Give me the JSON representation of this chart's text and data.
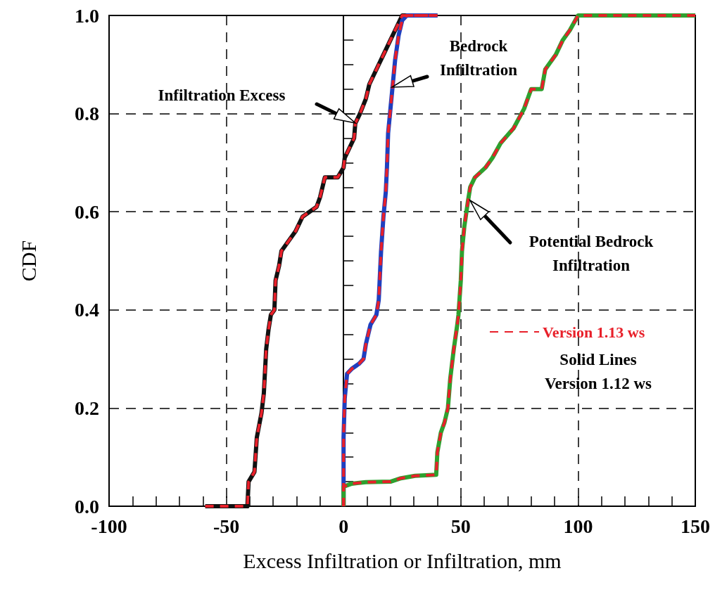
{
  "chart_data": {
    "type": "line",
    "xlabel": "Excess Infiltration or Infiltration, mm",
    "ylabel": "CDF",
    "xlim": [
      -100,
      150
    ],
    "xticks": [
      -100,
      -50,
      0,
      50,
      100,
      150
    ],
    "ylim": [
      0,
      1
    ],
    "yticks": [
      {
        "value": 0,
        "label": "0.0"
      },
      {
        "value": 0.2,
        "label": "0.2"
      },
      {
        "value": 0.4,
        "label": "0.4"
      },
      {
        "value": 0.6,
        "label": "0.6"
      },
      {
        "value": 0.8,
        "label": "0.8"
      },
      {
        "value": 1,
        "label": "1.0"
      }
    ],
    "grid": true,
    "legend": "right",
    "marker": "none",
    "series": [
      {
        "color": "#111111",
        "line_style": "solid",
        "x": [
          -59,
          -41,
          -40.5,
          -38,
          -37,
          -35,
          -34,
          -33,
          -32,
          -31,
          -29.5,
          -29,
          -27.5,
          -26.5,
          -25,
          -23.5,
          -20.5,
          -17.5,
          -14.5,
          -11.5,
          -10,
          -8,
          -2.5,
          0,
          0.5,
          2.5,
          4.5,
          5,
          7,
          9.5,
          11,
          14,
          17,
          20,
          22,
          24,
          25,
          40
        ],
        "values": [
          0,
          0,
          0.05,
          0.07,
          0.14,
          0.19,
          0.23,
          0.32,
          0.36,
          0.39,
          0.4,
          0.46,
          0.49,
          0.52,
          0.53,
          0.54,
          0.56,
          0.59,
          0.6,
          0.61,
          0.63,
          0.67,
          0.67,
          0.69,
          0.71,
          0.73,
          0.75,
          0.78,
          0.8,
          0.83,
          0.86,
          0.89,
          0.92,
          0.95,
          0.97,
          0.99,
          1,
          1
        ]
      },
      {
        "color": "#1f3fbf",
        "line_style": "solid",
        "x": [
          0,
          0,
          0.5,
          1.5,
          3.5,
          6.5,
          8.5,
          9.5,
          11.5,
          14,
          15,
          15.5,
          16,
          17,
          18,
          18.5,
          19,
          20,
          21,
          22,
          23.5,
          25,
          27,
          40
        ],
        "values": [
          0,
          0.14,
          0.22,
          0.27,
          0.28,
          0.29,
          0.3,
          0.33,
          0.37,
          0.39,
          0.42,
          0.47,
          0.52,
          0.59,
          0.64,
          0.69,
          0.76,
          0.81,
          0.86,
          0.91,
          0.96,
          0.99,
          1,
          1
        ]
      },
      {
        "color": "#2ea02e",
        "line_style": "solid",
        "x": [
          0,
          0,
          3.5,
          9.5,
          20,
          24.5,
          30.5,
          39.5,
          40,
          41.5,
          43,
          44.5,
          45.5,
          47,
          48.5,
          49,
          50,
          50.5,
          51.5,
          53,
          54,
          56,
          60.5,
          63.5,
          67,
          72.5,
          77,
          80,
          84.5,
          86,
          90.5,
          93.5,
          96.5,
          100,
          150
        ],
        "values": [
          0,
          0.04,
          0.046,
          0.049,
          0.05,
          0.057,
          0.062,
          0.064,
          0.11,
          0.15,
          0.17,
          0.2,
          0.26,
          0.32,
          0.37,
          0.39,
          0.46,
          0.52,
          0.57,
          0.62,
          0.65,
          0.67,
          0.69,
          0.71,
          0.74,
          0.77,
          0.81,
          0.85,
          0.85,
          0.89,
          0.92,
          0.95,
          0.97,
          1,
          1
        ]
      },
      {
        "name": "Version 1.13 ws",
        "color": "#e8202a",
        "line_style": "dashed",
        "x": [
          -59,
          -41,
          -40.5,
          -38,
          -37,
          -35,
          -34,
          -33,
          -32,
          -31,
          -29.5,
          -29,
          -27.5,
          -26.5,
          -25,
          -23.5,
          -20.5,
          -17.5,
          -14.5,
          -11.5,
          -10,
          -8,
          -2.5,
          0,
          0.5,
          2.5,
          4.5,
          5,
          7,
          9.5,
          11,
          14,
          17,
          20,
          22,
          24,
          25,
          40
        ],
        "values": [
          0,
          0,
          0.05,
          0.07,
          0.14,
          0.19,
          0.23,
          0.32,
          0.36,
          0.39,
          0.4,
          0.46,
          0.49,
          0.52,
          0.53,
          0.54,
          0.56,
          0.59,
          0.6,
          0.61,
          0.63,
          0.67,
          0.67,
          0.69,
          0.71,
          0.73,
          0.75,
          0.78,
          0.8,
          0.83,
          0.86,
          0.89,
          0.92,
          0.95,
          0.97,
          0.99,
          1,
          1
        ]
      },
      {
        "color": "#e8202a",
        "line_style": "dashed",
        "x": [
          0,
          0,
          0.5,
          1.5,
          3.5,
          6.5,
          8.5,
          9.5,
          11.5,
          14,
          15,
          15.5,
          16,
          17,
          18,
          18.5,
          19,
          20,
          21,
          22,
          23.5,
          25,
          27,
          40
        ],
        "values": [
          0,
          0.14,
          0.22,
          0.27,
          0.28,
          0.29,
          0.3,
          0.33,
          0.37,
          0.39,
          0.42,
          0.47,
          0.52,
          0.59,
          0.64,
          0.69,
          0.76,
          0.81,
          0.86,
          0.91,
          0.96,
          0.99,
          1,
          1
        ]
      },
      {
        "color": "#e8202a",
        "line_style": "dashed",
        "x": [
          0,
          0,
          3.5,
          9.5,
          20,
          24.5,
          30.5,
          39.5,
          40,
          41.5,
          43,
          44.5,
          45.5,
          47,
          48.5,
          49,
          50,
          50.5,
          51.5,
          53,
          54,
          56,
          60.5,
          63.5,
          67,
          72.5,
          77,
          80,
          84.5,
          86,
          90.5,
          93.5,
          96.5,
          100,
          150
        ],
        "values": [
          0,
          0.04,
          0.046,
          0.049,
          0.05,
          0.057,
          0.062,
          0.064,
          0.11,
          0.15,
          0.17,
          0.2,
          0.26,
          0.32,
          0.37,
          0.39,
          0.46,
          0.52,
          0.57,
          0.62,
          0.65,
          0.67,
          0.69,
          0.71,
          0.74,
          0.77,
          0.81,
          0.85,
          0.85,
          0.89,
          0.92,
          0.95,
          0.97,
          1,
          1
        ]
      }
    ],
    "annotations": [
      "Infiltration Excess",
      "Bedrock\nInfiltration",
      "Potential Bedrock\nInfiltration",
      "Solid Lines\nVersion 1.12 ws"
    ]
  }
}
